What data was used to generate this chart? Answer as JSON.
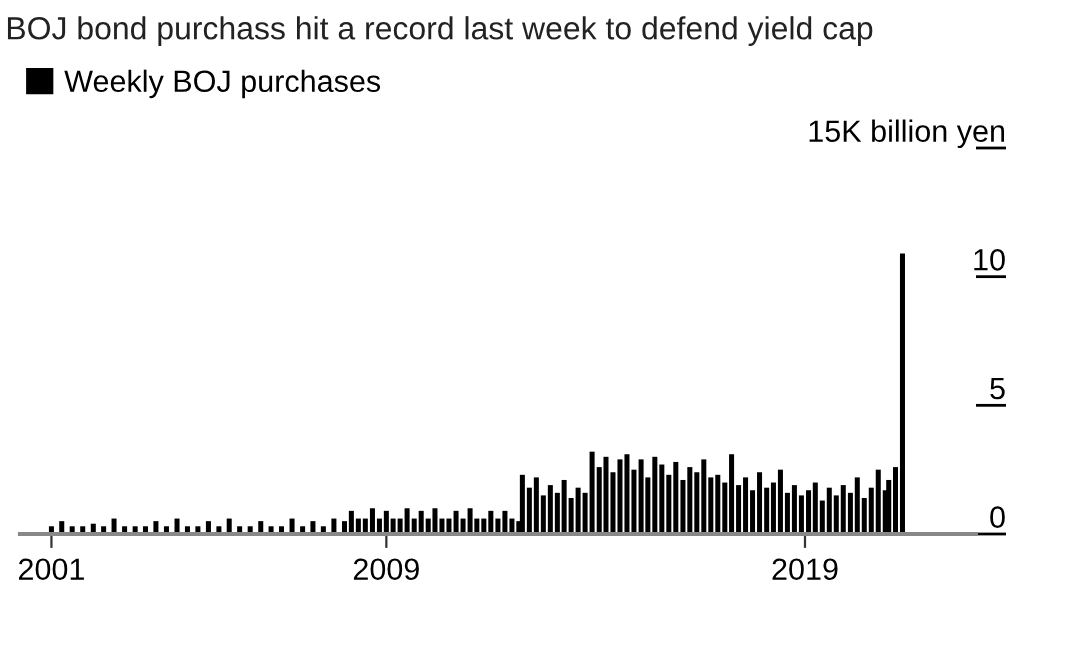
{
  "chart_data": {
    "type": "bar",
    "title": "BOJ bond purchass hit a record last week to defend yield cap",
    "x": [
      "2001-01",
      "2001-04",
      "2001-07",
      "2001-10",
      "2002-01",
      "2002-04",
      "2002-07",
      "2002-10",
      "2003-01",
      "2003-04",
      "2003-07",
      "2003-10",
      "2004-01",
      "2004-04",
      "2004-07",
      "2004-10",
      "2005-01",
      "2005-04",
      "2005-07",
      "2005-10",
      "2006-01",
      "2006-04",
      "2006-07",
      "2006-10",
      "2007-01",
      "2007-04",
      "2007-07",
      "2007-10",
      "2008-01",
      "2008-03",
      "2008-05",
      "2008-07",
      "2008-09",
      "2008-11",
      "2009-01",
      "2009-03",
      "2009-05",
      "2009-07",
      "2009-09",
      "2009-11",
      "2010-01",
      "2010-03",
      "2010-05",
      "2010-07",
      "2010-09",
      "2010-11",
      "2011-01",
      "2011-03",
      "2011-05",
      "2011-07",
      "2011-09",
      "2011-11",
      "2012-01",
      "2012-03",
      "2012-04",
      "2012-06",
      "2012-08",
      "2012-10",
      "2012-12",
      "2013-02",
      "2013-04",
      "2013-06",
      "2013-08",
      "2013-10",
      "2013-12",
      "2014-02",
      "2014-04",
      "2014-06",
      "2014-08",
      "2014-10",
      "2014-12",
      "2015-02",
      "2015-04",
      "2015-06",
      "2015-08",
      "2015-10",
      "2015-12",
      "2016-02",
      "2016-04",
      "2016-06",
      "2016-08",
      "2016-10",
      "2016-12",
      "2017-02",
      "2017-04",
      "2017-06",
      "2017-08",
      "2017-10",
      "2017-12",
      "2018-02",
      "2018-04",
      "2018-06",
      "2018-08",
      "2018-10",
      "2018-12",
      "2019-02",
      "2019-04",
      "2019-06",
      "2019-08",
      "2019-10",
      "2019-12",
      "2020-02",
      "2020-04",
      "2020-06",
      "2020-08",
      "2020-10",
      "2020-12",
      "2021-01",
      "2021-03",
      "2021-05"
    ],
    "series": [
      {
        "name": "Weekly BOJ purchases",
        "color": "#000000",
        "values": [
          0.3,
          0.5,
          0.3,
          0.3,
          0.4,
          0.3,
          0.6,
          0.3,
          0.3,
          0.3,
          0.5,
          0.3,
          0.6,
          0.3,
          0.3,
          0.5,
          0.3,
          0.6,
          0.3,
          0.3,
          0.5,
          0.3,
          0.3,
          0.6,
          0.3,
          0.5,
          0.3,
          0.6,
          0.5,
          0.9,
          0.6,
          0.6,
          1.0,
          0.6,
          0.9,
          0.6,
          0.6,
          1.0,
          0.6,
          0.9,
          0.6,
          1.0,
          0.6,
          0.6,
          0.9,
          0.6,
          1.0,
          0.6,
          0.6,
          0.9,
          0.6,
          0.9,
          0.6,
          0.5,
          2.3,
          1.8,
          2.2,
          1.5,
          1.9,
          1.6,
          2.1,
          1.4,
          1.8,
          1.6,
          3.2,
          2.6,
          3.0,
          2.4,
          2.9,
          3.1,
          2.5,
          2.9,
          2.2,
          3.0,
          2.7,
          2.3,
          2.8,
          2.1,
          2.6,
          2.4,
          2.9,
          2.2,
          2.3,
          2.0,
          3.1,
          1.9,
          2.2,
          1.7,
          2.4,
          1.8,
          2.0,
          2.5,
          1.6,
          1.9,
          1.5,
          1.7,
          2.0,
          1.3,
          1.8,
          1.5,
          1.9,
          1.6,
          2.2,
          1.4,
          1.8,
          2.5,
          1.7,
          2.1,
          2.6,
          10.9
        ]
      }
    ],
    "xlim": [
      "2000-04",
      "2023-02"
    ],
    "xticks": [
      {
        "value": "2001-01",
        "label": "2001"
      },
      {
        "value": "2009-01",
        "label": "2009"
      },
      {
        "value": "2019-01",
        "label": "2019"
      }
    ],
    "ylim": [
      0,
      15
    ],
    "yticks": [
      0,
      5,
      10,
      {
        "value": 15,
        "label": "15K billion yen"
      }
    ],
    "legend": "top left",
    "grid": false
  }
}
